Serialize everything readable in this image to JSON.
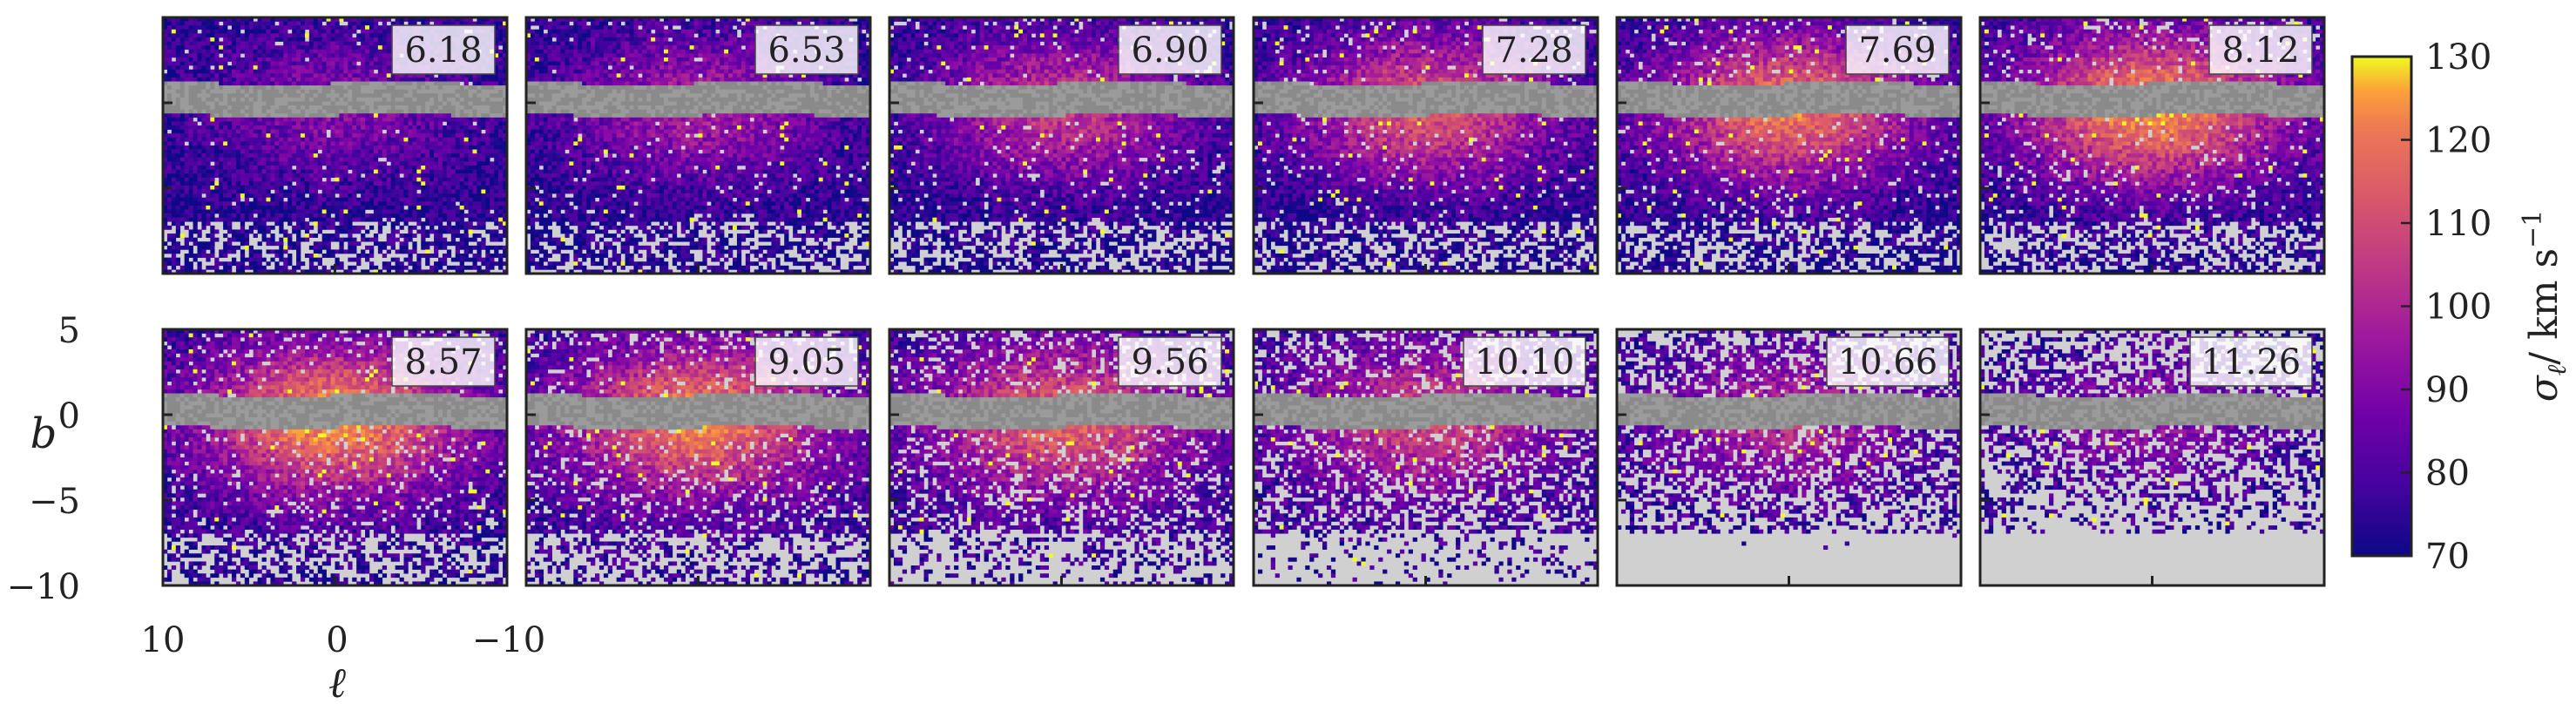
{
  "chart_data": {
    "type": "heatmap",
    "colormap": "plasma",
    "masked_color": "#d0d0d0",
    "disk_mask_color": "#8a8a8a",
    "panel_labels": [
      "6.18",
      "6.53",
      "6.90",
      "7.28",
      "7.69",
      "8.12",
      "8.57",
      "9.05",
      "9.56",
      "10.10",
      "10.66",
      "11.26"
    ],
    "panel_peak": [
      90,
      97,
      105,
      113,
      120,
      125,
      125,
      122,
      116,
      108,
      100,
      92
    ],
    "panel_coverage": [
      0.97,
      0.95,
      0.93,
      0.92,
      0.9,
      0.88,
      0.85,
      0.78,
      0.68,
      0.55,
      0.38,
      0.24
    ],
    "panel_eq_fraction": [
      0.55,
      0.75,
      0.93,
      1.0,
      1.0,
      0.9,
      0.85,
      0.7,
      0.6,
      0.55,
      0.5,
      0.45
    ],
    "x_axis": {
      "label": "ℓ",
      "range": [
        10,
        -10
      ],
      "ticks": [
        10,
        0,
        -10
      ],
      "tick_labels": [
        "10",
        "0",
        "−10"
      ]
    },
    "y_axis": {
      "label": "b",
      "range": [
        -10,
        5
      ],
      "ticks": [
        5,
        0,
        -5,
        -10
      ],
      "tick_labels": [
        "5",
        "0",
        "−5",
        "−10"
      ]
    },
    "colorbar": {
      "label_var": "σ",
      "label_sub": "ℓ",
      "label_unit": "/ km s",
      "label_exp": "−1",
      "range": [
        70,
        130
      ],
      "ticks": [
        70,
        80,
        90,
        100,
        110,
        120,
        130
      ],
      "tick_labels": [
        "70",
        "80",
        "90",
        "100",
        "110",
        "120",
        "130"
      ]
    }
  }
}
